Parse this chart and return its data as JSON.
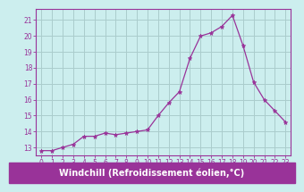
{
  "x": [
    0,
    1,
    2,
    3,
    4,
    5,
    6,
    7,
    8,
    9,
    10,
    11,
    12,
    13,
    14,
    15,
    16,
    17,
    18,
    19,
    20,
    21,
    22,
    23
  ],
  "y": [
    12.8,
    12.8,
    13.0,
    13.2,
    13.7,
    13.7,
    13.9,
    13.8,
    13.9,
    14.0,
    14.1,
    15.0,
    15.8,
    16.5,
    18.6,
    20.0,
    20.2,
    20.6,
    21.3,
    19.4,
    17.1,
    16.0,
    15.3,
    14.6
  ],
  "line_color": "#993399",
  "marker": "*",
  "marker_size": 3.5,
  "bg_color": "#cceeee",
  "grid_color": "#aacccc",
  "xlabel": "Windchill (Refroidissement éolien,°C)",
  "xlabel_bg": "#993399",
  "xlabel_color": "#ffffff",
  "ylabel_ticks": [
    13,
    14,
    15,
    16,
    17,
    18,
    19,
    20,
    21
  ],
  "ylim": [
    12.5,
    21.7
  ],
  "xlim": [
    -0.5,
    23.5
  ],
  "xticks": [
    0,
    1,
    2,
    3,
    4,
    5,
    6,
    7,
    8,
    9,
    10,
    11,
    12,
    13,
    14,
    15,
    16,
    17,
    18,
    19,
    20,
    21,
    22,
    23
  ],
  "tick_fontsize": 5.5,
  "xlabel_fontsize": 7,
  "spine_color": "#993399",
  "tick_color": "#993399"
}
